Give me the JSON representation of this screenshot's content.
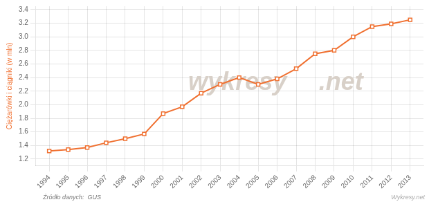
{
  "chart_data": {
    "type": "line",
    "y_label": "Ciężarówki i ciągniki (w mln)",
    "x": [
      1994,
      1995,
      1996,
      1997,
      1998,
      1999,
      2000,
      2001,
      2002,
      2003,
      2004,
      2005,
      2006,
      2007,
      2008,
      2009,
      2010,
      2011,
      2012,
      2013
    ],
    "values": [
      1.32,
      1.34,
      1.37,
      1.44,
      1.5,
      1.57,
      1.87,
      1.97,
      2.17,
      2.3,
      2.4,
      2.3,
      2.38,
      2.53,
      2.75,
      2.8,
      3.0,
      3.15,
      3.19,
      3.25
    ],
    "color": "#f07030",
    "marker": "square",
    "xlim": [
      1993.3,
      2013.7
    ],
    "xticks": [
      1994,
      1995,
      1996,
      1997,
      1998,
      1999,
      2000,
      2001,
      2002,
      2003,
      2004,
      2005,
      2006,
      2007,
      2008,
      2009,
      2010,
      2011,
      2012,
      2013
    ],
    "ylim": [
      1.1,
      3.45
    ],
    "yticks": [
      1.2,
      1.4,
      1.6,
      1.8,
      {
        "value": 2,
        "label": "2.0"
      },
      2.2,
      2.4,
      2.6,
      2.8,
      {
        "value": 3,
        "label": "3.0"
      },
      3.2,
      3.4
    ],
    "grid": true,
    "annotations": [
      {
        "text": "wykresy",
        "color": "#d8d0c8"
      },
      {
        "text": ".net",
        "color": "#d8d0c8"
      },
      {
        "text": "Źródło danych:  GUS",
        "color": "#777777"
      },
      {
        "text": "Wykresy.net",
        "color": "#aaaaaa"
      }
    ]
  }
}
